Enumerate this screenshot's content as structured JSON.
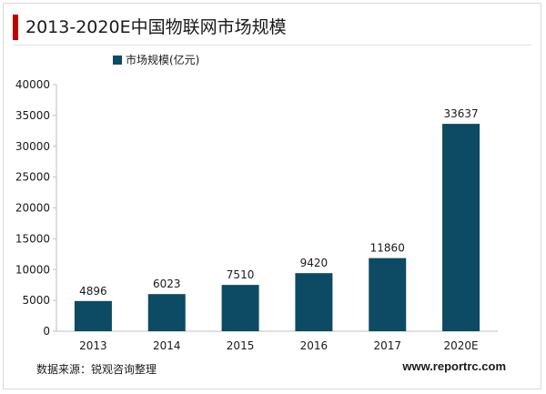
{
  "header": {
    "title": "2013-2020E中国物联网市场规模"
  },
  "footer": {
    "source": "数据来源：锐观咨询整理",
    "website": "www.reportrc.com"
  },
  "colors": {
    "accent": "#c00000",
    "bar": "#0d4a63"
  },
  "chart_data": {
    "type": "bar",
    "categories": [
      "2013",
      "2014",
      "2015",
      "2016",
      "2017",
      "2020E"
    ],
    "series": [
      {
        "name": "市场规模(亿元)",
        "values": [
          4896,
          6023,
          7510,
          9420,
          11860,
          33637
        ]
      }
    ],
    "data_labels": [
      "4896",
      "6023",
      "7510",
      "9420",
      "11860",
      "33637"
    ],
    "ylim": [
      0,
      40000
    ],
    "yticks": [
      0,
      5000,
      10000,
      15000,
      20000,
      25000,
      30000,
      35000,
      40000
    ],
    "grid": false,
    "legend": "top-left"
  }
}
